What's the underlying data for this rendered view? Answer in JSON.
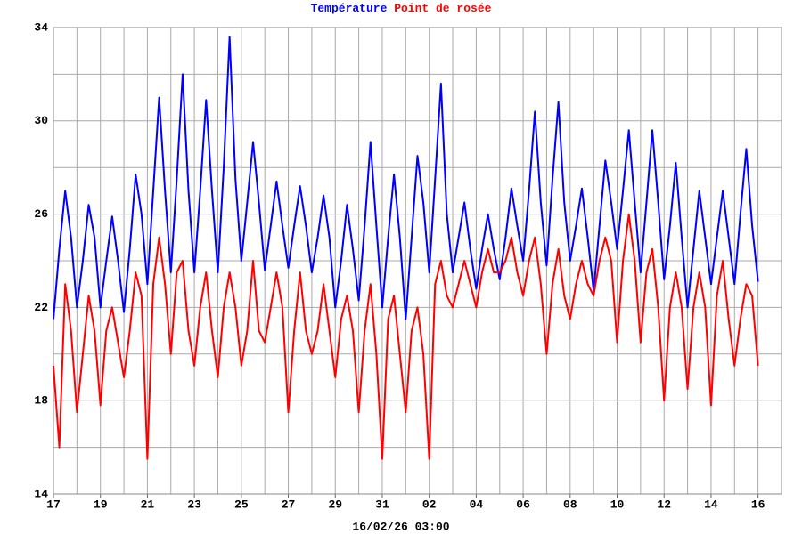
{
  "chart_data": {
    "type": "line",
    "series": [
      {
        "name": "Température",
        "color": "#0000ff",
        "values": [
          21.5,
          24.5,
          27,
          25,
          22,
          24,
          26.4,
          25,
          22,
          24,
          25.9,
          24,
          21.8,
          24.5,
          27.7,
          26,
          23,
          27,
          31,
          27,
          23.5,
          27.5,
          32,
          27,
          23.5,
          27,
          30.9,
          27,
          23.5,
          28,
          33.6,
          27.5,
          24,
          26.5,
          29.1,
          26.5,
          23.6,
          25.5,
          27.4,
          25.5,
          23.7,
          25.5,
          27.2,
          25.5,
          23.5,
          25,
          26.8,
          25,
          22,
          24,
          26.4,
          24.5,
          22.3,
          25.5,
          29.1,
          25.5,
          22,
          25,
          27.7,
          25,
          21.5,
          25,
          28.5,
          26.5,
          23.5,
          27.5,
          31.6,
          26,
          23.5,
          25,
          26.5,
          24.5,
          22.8,
          24.5,
          26,
          24.5,
          23.2,
          25,
          27.1,
          25.5,
          24,
          27,
          30.4,
          26.5,
          23.8,
          27.5,
          30.8,
          26.5,
          24,
          25.5,
          27.1,
          25,
          22.7,
          25.5,
          28.3,
          26.5,
          24.5,
          27,
          29.6,
          26.5,
          23.5,
          26.5,
          29.6,
          26.5,
          23.2,
          25.5,
          28.2,
          25,
          22,
          24.5,
          27,
          25,
          23,
          25,
          27,
          25,
          23,
          26,
          28.8,
          25.5,
          23.1
        ]
      },
      {
        "name": "Point de rosée",
        "color": "#ff0000",
        "values": [
          19.5,
          16,
          23,
          21,
          17.5,
          20,
          22.5,
          21,
          17.8,
          21,
          22,
          20.5,
          19,
          21,
          23.5,
          22.5,
          15.5,
          23,
          25,
          23,
          20,
          23.5,
          24,
          21,
          19.5,
          22,
          23.5,
          21,
          19,
          22,
          23.5,
          22,
          19.5,
          21,
          24,
          21,
          20.5,
          22,
          23.5,
          22,
          17.5,
          21,
          23.5,
          21,
          20,
          21,
          23,
          21,
          19,
          21.5,
          22.5,
          21,
          17.5,
          21,
          23,
          20,
          15.5,
          21.5,
          22.5,
          20,
          17.5,
          21,
          22,
          20,
          15.5,
          23,
          24,
          22.5,
          22,
          23,
          24,
          23,
          22,
          23.5,
          24.5,
          23.5,
          23.5,
          24,
          25,
          23.5,
          22.5,
          24,
          25,
          23,
          20,
          23,
          24.5,
          22.5,
          21.5,
          23,
          24,
          23,
          22.5,
          24,
          25,
          24,
          20.5,
          24,
          26,
          24,
          20.5,
          23.5,
          24.5,
          22,
          18,
          22,
          23.5,
          22,
          18.5,
          22,
          23.5,
          22,
          17.8,
          22.5,
          24,
          21.5,
          19.5,
          21.5,
          23,
          22.5,
          19.5
        ]
      }
    ],
    "x": [
      0,
      0.25,
      0.5,
      0.75,
      1,
      1.25,
      1.5,
      1.75,
      2,
      2.25,
      2.5,
      2.75,
      3,
      3.25,
      3.5,
      3.75,
      4,
      4.25,
      4.5,
      4.75,
      5,
      5.25,
      5.5,
      5.75,
      6,
      6.25,
      6.5,
      6.75,
      7,
      7.25,
      7.5,
      7.75,
      8,
      8.25,
      8.5,
      8.75,
      9,
      9.25,
      9.5,
      9.75,
      10,
      10.25,
      10.5,
      10.75,
      11,
      11.25,
      11.5,
      11.75,
      12,
      12.25,
      12.5,
      12.75,
      13,
      13.25,
      13.5,
      13.75,
      14,
      14.25,
      14.5,
      14.75,
      15,
      15.25,
      15.5,
      15.75,
      16,
      16.25,
      16.5,
      16.75,
      17,
      17.25,
      17.5,
      17.75,
      18,
      18.25,
      18.5,
      18.75,
      19,
      19.25,
      19.5,
      19.75,
      20,
      20.25,
      20.5,
      20.75,
      21,
      21.25,
      21.5,
      21.75,
      22,
      22.25,
      22.5,
      22.75,
      23,
      23.25,
      23.5,
      23.75,
      24,
      24.25,
      24.5,
      24.75,
      25,
      25.25,
      25.5,
      25.75,
      26,
      26.25,
      26.5,
      26.75,
      27,
      27.25,
      27.5,
      27.75,
      28,
      28.25,
      28.5,
      28.75,
      29,
      29.25,
      29.5,
      29.75,
      30
    ],
    "xlim": [
      0,
      31
    ],
    "xticks": [
      {
        "value": 0,
        "label": "17"
      },
      {
        "value": 2,
        "label": "19"
      },
      {
        "value": 4,
        "label": "21"
      },
      {
        "value": 6,
        "label": "23"
      },
      {
        "value": 8,
        "label": "25"
      },
      {
        "value": 10,
        "label": "27"
      },
      {
        "value": 12,
        "label": "29"
      },
      {
        "value": 14,
        "label": "31"
      },
      {
        "value": 16,
        "label": "02"
      },
      {
        "value": 18,
        "label": "04"
      },
      {
        "value": 20,
        "label": "06"
      },
      {
        "value": 22,
        "label": "08"
      },
      {
        "value": 24,
        "label": "10"
      },
      {
        "value": 26,
        "label": "12"
      },
      {
        "value": 28,
        "label": "14"
      },
      {
        "value": 30,
        "label": "16"
      }
    ],
    "ylim": [
      14,
      34
    ],
    "yticks": [
      14,
      18,
      22,
      26,
      30,
      34
    ],
    "grid": true,
    "x_label": "16/02/26 03:00"
  }
}
